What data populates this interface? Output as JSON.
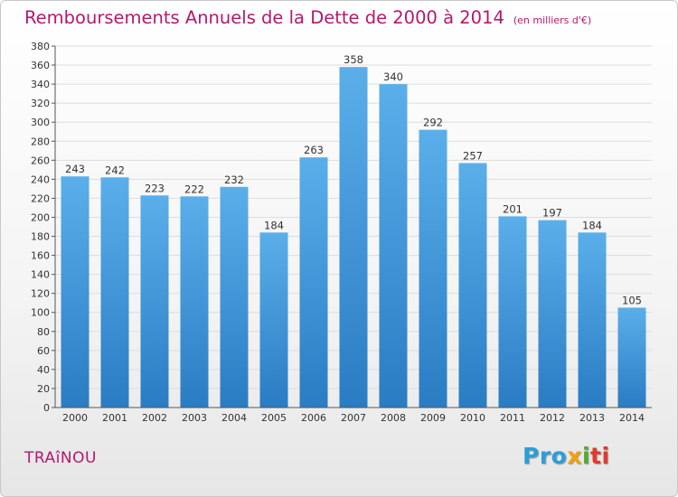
{
  "title": "Remboursements Annuels de la Dette de 2000 à 2014",
  "subtitle": "(en milliers d'€)",
  "commune": "TRAîNOU",
  "logo": {
    "p1": "Pro",
    "p2": "x",
    "p3": "i",
    "p4": "ti"
  },
  "colors": {
    "title": "#b5176f",
    "bar_top": "#5aafea",
    "bar_bottom": "#2a7cc3",
    "grid": "#dddddd",
    "axis": "#555555"
  },
  "chart_data": {
    "type": "bar",
    "categories": [
      "2000",
      "2001",
      "2002",
      "2003",
      "2004",
      "2005",
      "2006",
      "2007",
      "2008",
      "2009",
      "2010",
      "2011",
      "2012",
      "2013",
      "2014"
    ],
    "values": [
      243,
      242,
      223,
      222,
      232,
      184,
      263,
      358,
      340,
      292,
      257,
      201,
      197,
      184,
      105
    ],
    "data_labels": [
      "243",
      "242",
      "223",
      "222",
      "232",
      "184",
      "263",
      "358",
      "340",
      "292",
      "257",
      "201",
      "197",
      "184",
      "105"
    ],
    "title": "Remboursements Annuels de la Dette de 2000 à 2014",
    "ylim": [
      0,
      380
    ],
    "yticks": [
      0,
      20,
      40,
      60,
      80,
      100,
      120,
      140,
      160,
      180,
      200,
      220,
      240,
      260,
      280,
      300,
      320,
      340,
      360,
      380
    ],
    "grid": true
  }
}
